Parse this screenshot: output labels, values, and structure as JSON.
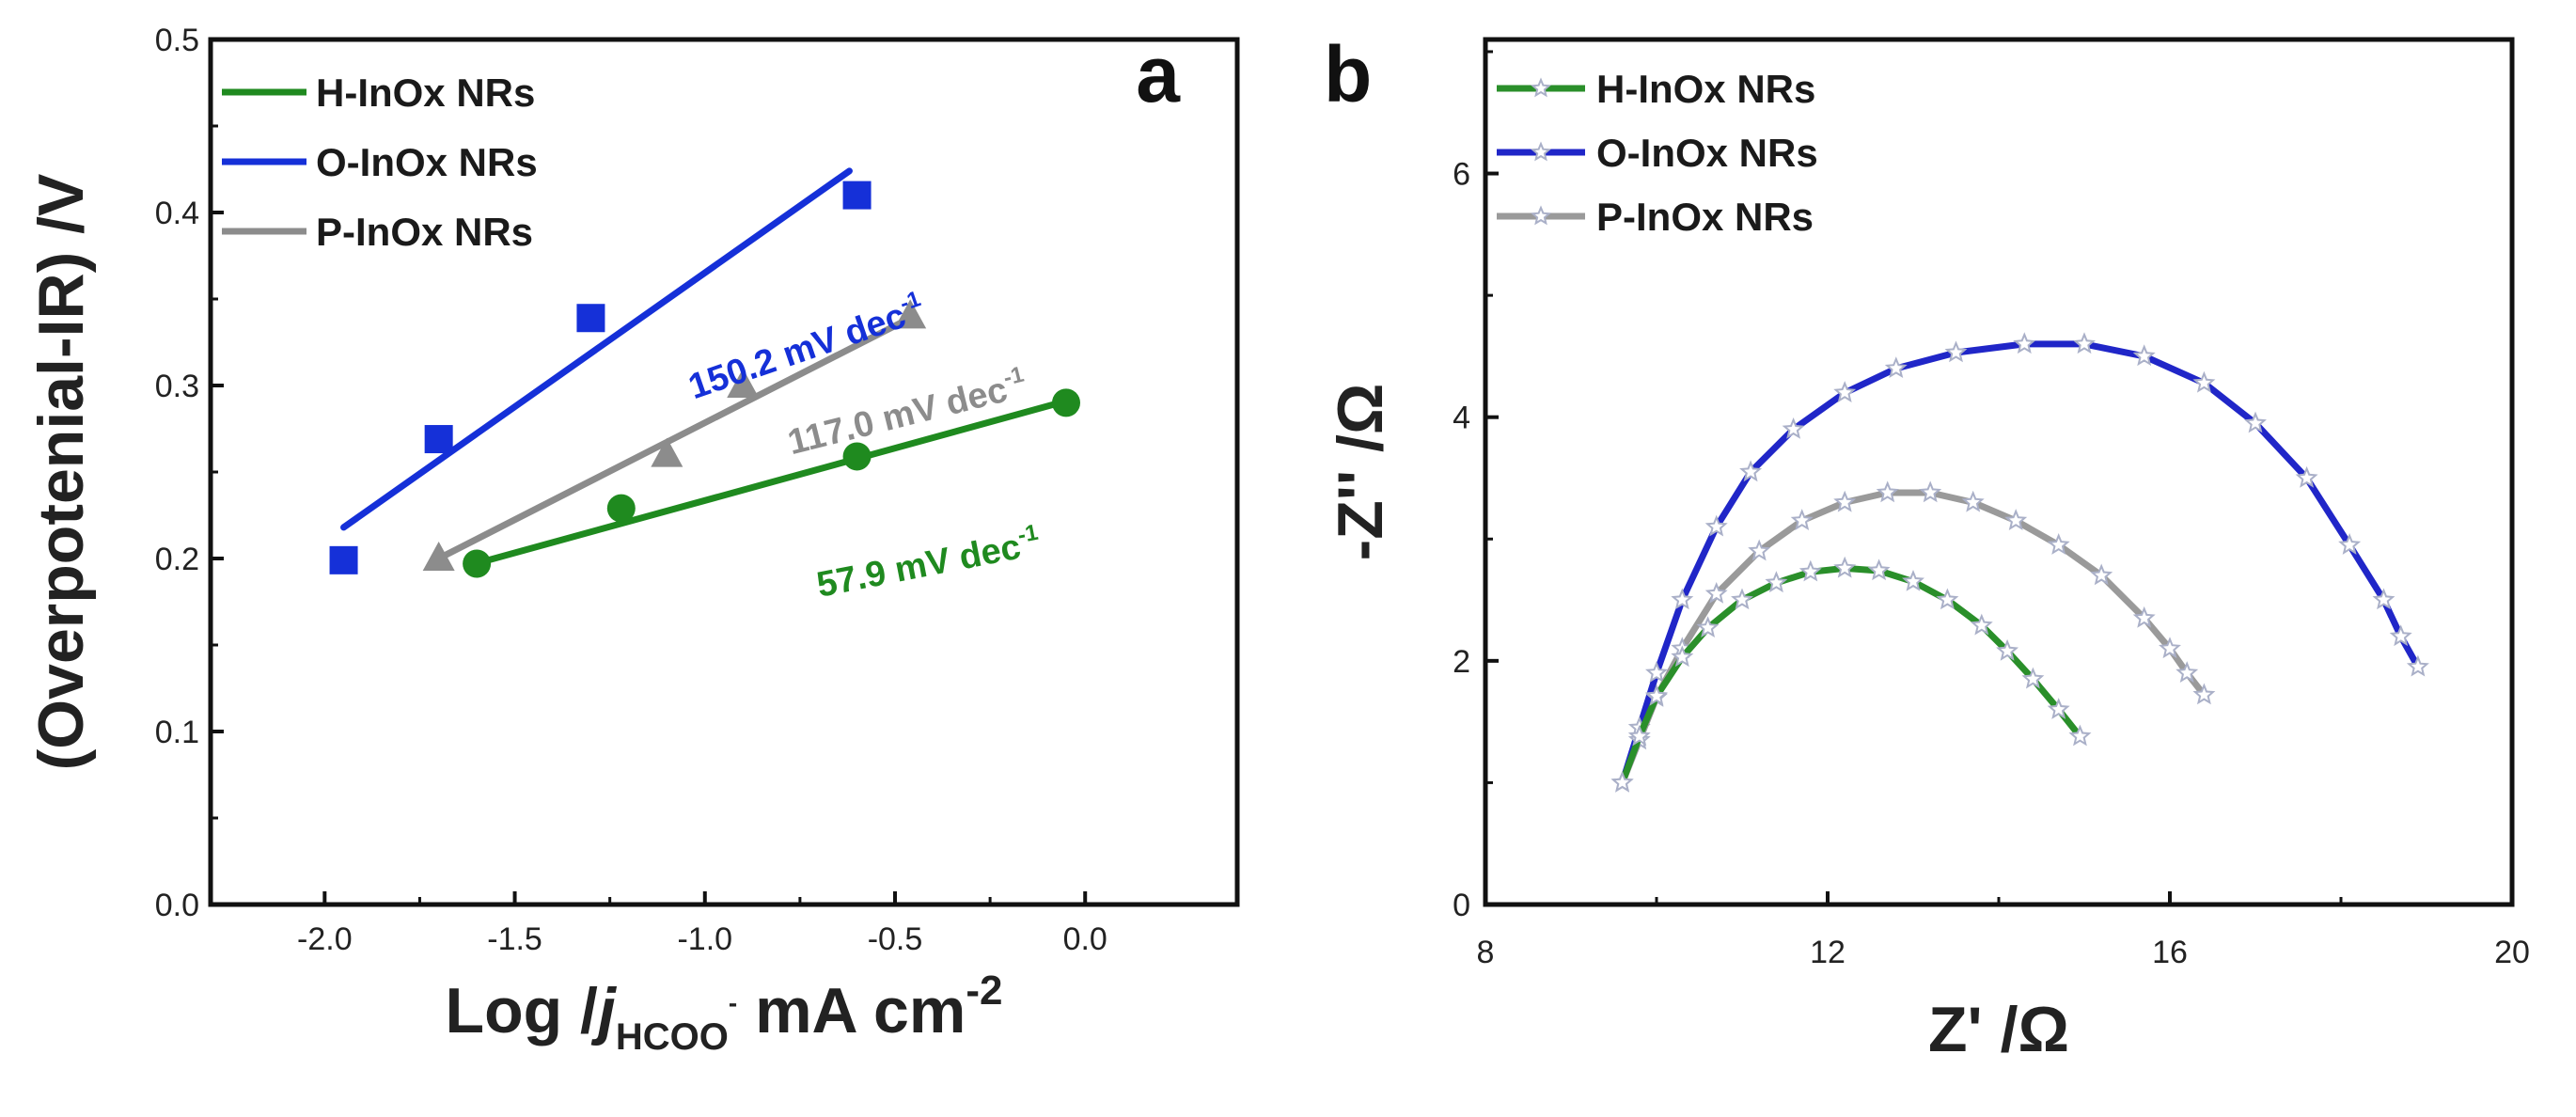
{
  "chart_data": [
    {
      "panel": "a",
      "type": "scatter",
      "ylabel": "(Overpotenial-IR) /V",
      "xlabel": {
        "pre": "Log /",
        "j": "j",
        "sub": "HCOO",
        "sup": "-",
        "post": " mA cm",
        "post_sup": "-2"
      },
      "xlim": [
        -2.3,
        0.4
      ],
      "ylim": [
        0.0,
        0.5
      ],
      "xticks": [
        -2.0,
        -1.5,
        -1.0,
        -0.5,
        0.0
      ],
      "xtick_labels": [
        "-2.0",
        "-1.5",
        "-1.0",
        "-0.5",
        "0.0"
      ],
      "yticks": [
        0.0,
        0.1,
        0.2,
        0.3,
        0.4,
        0.5
      ],
      "ytick_labels": [
        "0.0",
        "0.1",
        "0.2",
        "0.3",
        "0.4",
        "0.5"
      ],
      "legend": {
        "placement": "top-left",
        "entries": [
          "H-InOx NRs",
          "O-InOx NRs",
          "P-InOx NRs"
        ]
      },
      "series": [
        {
          "name": "H-InOx NRs",
          "marker": "circle",
          "color": "#1f8a1f",
          "x": [
            -1.6,
            -1.22,
            -0.6,
            -0.05
          ],
          "y": [
            0.197,
            0.229,
            0.259,
            0.29
          ],
          "fit": {
            "x": [
              -1.62,
              -0.05
            ],
            "y": [
              0.196,
              0.291
            ]
          },
          "slope_label": "57.9 mV dec",
          "slope_sup": "-1"
        },
        {
          "name": "O-InOx NRs",
          "marker": "square",
          "color": "#1530d8",
          "x": [
            -1.95,
            -1.7,
            -1.3,
            -0.6
          ],
          "y": [
            0.199,
            0.269,
            0.339,
            0.41
          ],
          "fit": {
            "x": [
              -1.95,
              -0.62
            ],
            "y": [
              0.218,
              0.424
            ]
          },
          "slope_label": "150.2 mV dec",
          "slope_sup": "-1"
        },
        {
          "name": "P-InOx NRs",
          "marker": "triangle",
          "color": "#8c8c8c",
          "x": [
            -1.7,
            -1.1,
            -0.9,
            -0.46
          ],
          "y": [
            0.2,
            0.26,
            0.3,
            0.34
          ],
          "fit": {
            "x": [
              -1.7,
              -0.46
            ],
            "y": [
              0.2,
              0.339
            ]
          },
          "slope_label": "117.0 mV dec",
          "slope_sup": "-1"
        }
      ]
    },
    {
      "panel": "b",
      "type": "line",
      "xlabel": "Z' /Ω",
      "ylabel": "-Z'' /Ω",
      "xlim": [
        8,
        20
      ],
      "ylim": [
        0,
        7.1
      ],
      "xticks": [
        8,
        12,
        16,
        20
      ],
      "xtick_labels": [
        "8",
        "12",
        "16",
        "20"
      ],
      "yticks": [
        0,
        2,
        4,
        6
      ],
      "ytick_labels": [
        "0",
        "2",
        "4",
        "6"
      ],
      "legend": {
        "placement": "top-left",
        "entries": [
          "H-InOx NRs",
          "O-InOx NRs",
          "P-InOx NRs"
        ]
      },
      "series": [
        {
          "name": "H-InOx NRs",
          "color": "#2a8f2a",
          "x": [
            9.6,
            9.8,
            10.0,
            10.3,
            10.6,
            11.0,
            11.4,
            11.8,
            12.2,
            12.6,
            13.0,
            13.4,
            13.8,
            14.1,
            14.4,
            14.7,
            14.95
          ],
          "y": [
            1.0,
            1.38,
            1.71,
            2.03,
            2.27,
            2.5,
            2.64,
            2.73,
            2.76,
            2.74,
            2.65,
            2.5,
            2.29,
            2.08,
            1.85,
            1.6,
            1.38
          ]
        },
        {
          "name": "O-InOx NRs",
          "color": "#2026c8",
          "x": [
            9.6,
            9.8,
            10.0,
            10.3,
            10.7,
            11.1,
            11.6,
            12.2,
            12.8,
            13.5,
            14.3,
            15.0,
            15.7,
            16.4,
            17.0,
            17.6,
            18.1,
            18.5,
            18.7,
            18.9
          ],
          "y": [
            1.0,
            1.45,
            1.9,
            2.5,
            3.1,
            3.55,
            3.9,
            4.2,
            4.4,
            4.53,
            4.6,
            4.6,
            4.5,
            4.28,
            3.95,
            3.5,
            2.95,
            2.5,
            2.2,
            1.95
          ]
        },
        {
          "name": "P-InOx NRs",
          "color": "#9a9a9a",
          "x": [
            9.6,
            9.8,
            10.0,
            10.3,
            10.7,
            11.2,
            11.7,
            12.2,
            12.7,
            13.2,
            13.7,
            14.2,
            14.7,
            15.2,
            15.7,
            16.0,
            16.2,
            16.4
          ],
          "y": [
            1.0,
            1.35,
            1.7,
            2.1,
            2.55,
            2.9,
            3.15,
            3.3,
            3.38,
            3.38,
            3.3,
            3.15,
            2.95,
            2.7,
            2.35,
            2.1,
            1.9,
            1.72
          ]
        }
      ]
    }
  ]
}
